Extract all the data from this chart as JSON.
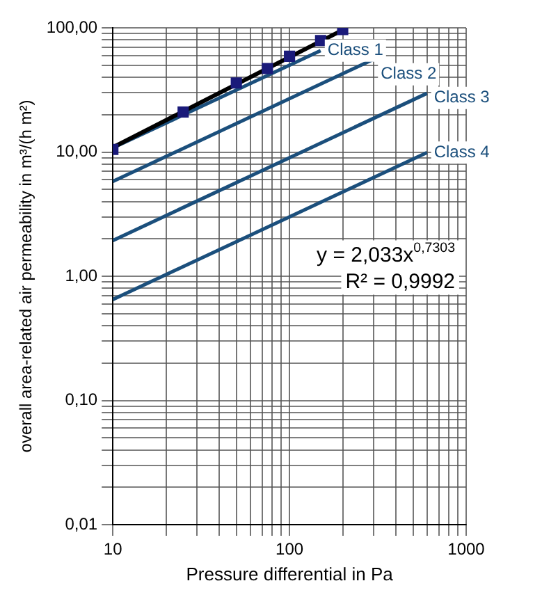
{
  "chart_data": {
    "type": "line",
    "xlabel": "Pressure differential in Pa",
    "ylabel": "overall area-related air permeability in m³/(h m²)",
    "log": "xy",
    "grid": true,
    "legend": false,
    "xlim": [
      10,
      1000
    ],
    "xticks": [
      10,
      100,
      1000
    ],
    "ylim": [
      0.01,
      100
    ],
    "yticks": [
      {
        "value": 0.01,
        "label": "0,01"
      },
      {
        "value": 0.1,
        "label": "0,10"
      },
      {
        "value": 1,
        "label": "1,00"
      },
      {
        "value": 10,
        "label": "10,00"
      },
      {
        "value": 100,
        "label": "100,00"
      }
    ],
    "series": [
      {
        "name": "Class 1",
        "color": "#1b4f7c",
        "marker": "none",
        "x": [
          10,
          150
        ],
        "values": [
          10.8,
          65.5
        ]
      },
      {
        "name": "Class 2",
        "color": "#1b4f7c",
        "marker": "none",
        "x": [
          10,
          300
        ],
        "values": [
          5.8,
          56
        ]
      },
      {
        "name": "Class 3",
        "color": "#1b4f7c",
        "marker": "none",
        "x": [
          10,
          600
        ],
        "values": [
          1.94,
          29.7
        ]
      },
      {
        "name": "Class 4",
        "color": "#1b4f7c",
        "marker": "none",
        "x": [
          10,
          600
        ],
        "values": [
          0.65,
          9.9
        ]
      },
      {
        "type": "scatter",
        "color": "#1a1a7a",
        "marker": "square",
        "x": [
          10,
          25,
          50,
          75,
          100,
          150,
          200
        ],
        "values": [
          10.5,
          21,
          36,
          47,
          59,
          79,
          97
        ]
      },
      {
        "color": "#000000",
        "marker": "none",
        "x": [
          10,
          200
        ],
        "values": [
          10.9,
          96
        ]
      }
    ],
    "annotations": [
      "y = 2,033x$^{0,7303}$",
      "R² = 0,9992"
    ]
  }
}
